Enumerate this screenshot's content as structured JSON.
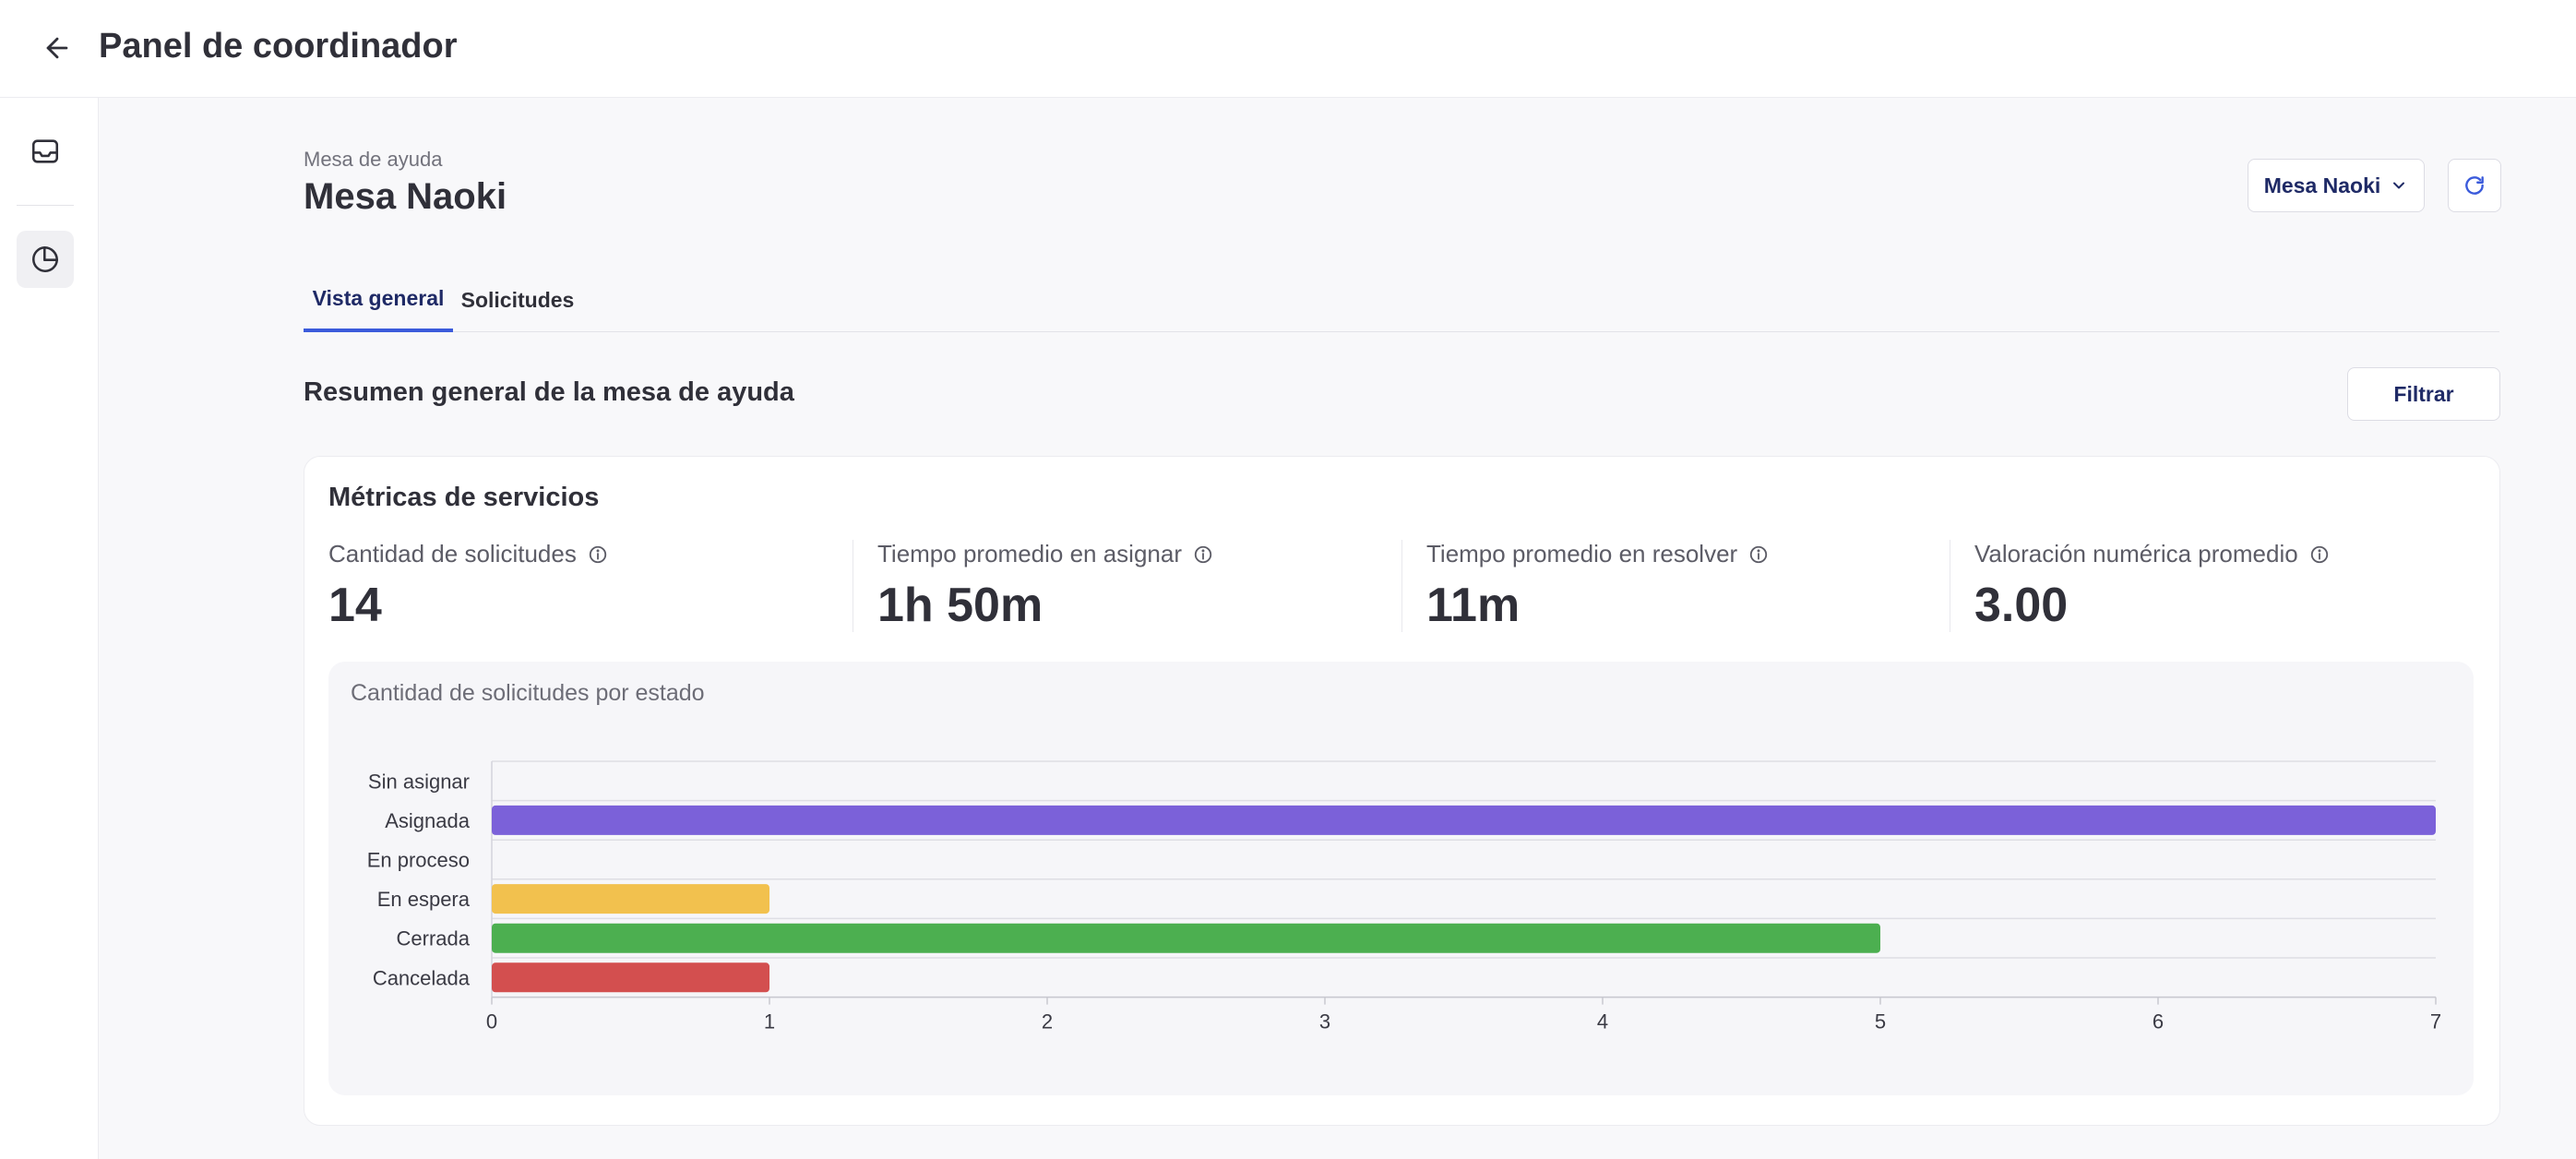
{
  "header": {
    "title": "Panel de coordinador"
  },
  "desk": {
    "label": "Mesa de ayuda",
    "name": "Mesa Naoki",
    "selector_value": "Mesa Naoki"
  },
  "tabs": [
    {
      "label": "Vista general",
      "active": true
    },
    {
      "label": "Solicitudes",
      "active": false
    }
  ],
  "summary": {
    "title": "Resumen general de la mesa de ayuda",
    "filter_label": "Filtrar"
  },
  "metrics": {
    "title": "Métricas de servicios",
    "items": [
      {
        "label": "Cantidad de solicitudes",
        "value": "14"
      },
      {
        "label": "Tiempo promedio en asignar",
        "value": "1h 50m"
      },
      {
        "label": "Tiempo promedio en resolver",
        "value": "11m"
      },
      {
        "label": "Valoración numérica promedio",
        "value": "3.00"
      }
    ]
  },
  "chart_data": {
    "type": "bar",
    "orientation": "horizontal",
    "title": "Cantidad de solicitudes por estado",
    "categories": [
      "Sin asignar",
      "Asignada",
      "En proceso",
      "En espera",
      "Cerrada",
      "Cancelada"
    ],
    "values": [
      0,
      7,
      0,
      1,
      5,
      1
    ],
    "colors": [
      "#9aa0a6",
      "#7b61d9",
      "#5b8def",
      "#f2c14e",
      "#4caf50",
      "#d34f4f"
    ],
    "xlim": [
      0,
      7
    ],
    "xticks": [
      0,
      1,
      2,
      3,
      4,
      5,
      6,
      7
    ],
    "grid": true
  }
}
